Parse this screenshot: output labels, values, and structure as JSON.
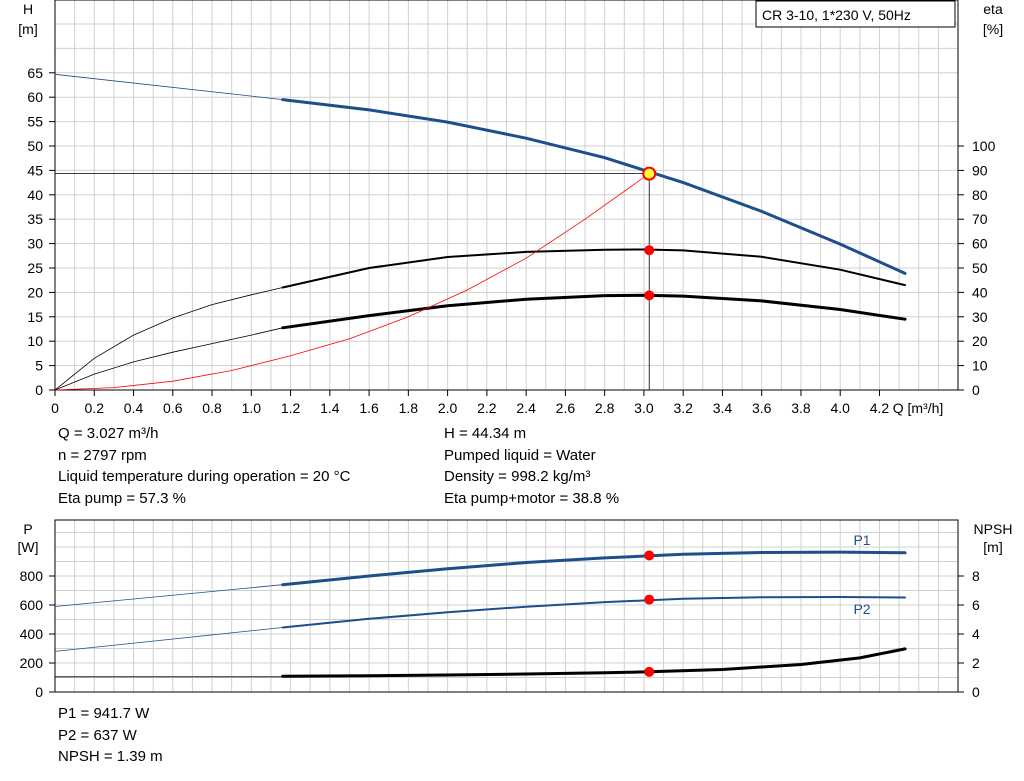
{
  "chart_data": [
    {
      "type": "line",
      "title": "CR 3-10, 1*230 V, 50Hz",
      "xlabel": "Q [m³/h]",
      "ylabel": [
        "H",
        "[m]"
      ],
      "y2label": [
        "eta",
        "[%]"
      ],
      "xlim": [
        0,
        4.6
      ],
      "ylim": [
        0,
        70
      ],
      "y2lim": [
        0,
        140
      ],
      "grid": true,
      "x_ticks": [
        "0",
        "0.2",
        "0.4",
        "0.6",
        "0.8",
        "1.0",
        "1.2",
        "1.4",
        "1.6",
        "1.8",
        "2.0",
        "2.2",
        "2.4",
        "2.6",
        "2.8",
        "3.0",
        "3.2",
        "3.4",
        "3.6",
        "3.8",
        "4.0",
        "4.2"
      ],
      "y_ticks": [
        "0",
        "5",
        "10",
        "15",
        "20",
        "25",
        "30",
        "35",
        "40",
        "45",
        "50",
        "55",
        "60",
        "65"
      ],
      "y2_ticks": [
        "0",
        "10",
        "20",
        "30",
        "40",
        "50",
        "60",
        "70",
        "80",
        "90",
        "100"
      ],
      "series": [
        {
          "id": "head",
          "axis": "left",
          "color": "#1f4e8c",
          "dashed": {
            "x": [
              0,
              1.16
            ],
            "y": [
              64.7,
              59.5
            ]
          },
          "operating": {
            "x": [
              1.16,
              1.6,
              2.0,
              2.4,
              2.8,
              3.2,
              3.6,
              4.0,
              4.33
            ],
            "y": [
              59.5,
              57.4,
              54.9,
              51.6,
              47.6,
              42.5,
              36.6,
              29.9,
              23.9
            ]
          }
        },
        {
          "id": "eta-pump",
          "axis": "right",
          "color": "#000000",
          "dashed": {
            "x": [
              0,
              0.2,
              0.4,
              0.6,
              0.8,
              1.0,
              1.16
            ],
            "y": [
              0,
              13,
              22.5,
              29.5,
              35,
              39,
              42
            ]
          },
          "operating": {
            "x": [
              1.16,
              1.6,
              2.0,
              2.4,
              2.8,
              3.0,
              3.2,
              3.6,
              4.0,
              4.33
            ],
            "y": [
              42,
              50,
              54.5,
              56.6,
              57.5,
              57.6,
              57.2,
              54.6,
              49.3,
              43
            ]
          }
        },
        {
          "id": "eta-total",
          "axis": "right",
          "color": "#000000",
          "dashed": {
            "x": [
              0,
              0.2,
              0.4,
              0.6,
              0.8,
              1.0,
              1.16
            ],
            "y": [
              0,
              6.5,
              11.5,
              15.5,
              19,
              22.5,
              25.5
            ]
          },
          "operating": {
            "x": [
              1.16,
              1.6,
              2.0,
              2.4,
              2.8,
              3.0,
              3.2,
              3.6,
              4.0,
              4.33
            ],
            "y": [
              25.5,
              30.5,
              34.5,
              37.2,
              38.7,
              38.8,
              38.5,
              36.5,
              33,
              29
            ]
          }
        },
        {
          "id": "system-curve",
          "axis": "left",
          "color": "#ff0000",
          "thin": true,
          "x": [
            0,
            0.3,
            0.6,
            0.9,
            1.2,
            1.5,
            1.8,
            2.1,
            2.4,
            2.7,
            3.027
          ],
          "y": [
            0,
            0.5,
            1.8,
            4,
            7,
            10.5,
            15,
            20.5,
            27,
            35,
            44.34
          ]
        }
      ],
      "operating_point": {
        "Q": 3.027,
        "H": 44.34,
        "eta_pump": 57.3,
        "eta_total": 38.8
      }
    },
    {
      "type": "line",
      "ylabel": [
        "P",
        "[W]"
      ],
      "y2label": [
        "NPSH",
        "[m]"
      ],
      "xlim": [
        0,
        4.6
      ],
      "ylim": [
        0,
        1050
      ],
      "y2lim": [
        0,
        10.5
      ],
      "grid": true,
      "y_ticks": [
        "0",
        "200",
        "400",
        "600",
        "800"
      ],
      "y2_ticks": [
        "0",
        "2",
        "4",
        "6",
        "8"
      ],
      "series": [
        {
          "id": "P1",
          "name": "P1",
          "axis": "left",
          "color": "#1f4e8c",
          "dashed": {
            "x": [
              0,
              1.16
            ],
            "y": [
              590,
              740
            ]
          },
          "operating": {
            "x": [
              1.16,
              1.6,
              2.0,
              2.4,
              2.8,
              3.2,
              3.6,
              4.0,
              4.33
            ],
            "y": [
              740,
              800,
              850,
              893,
              925,
              950,
              962,
              965,
              960
            ]
          }
        },
        {
          "id": "P2",
          "name": "P2",
          "axis": "left",
          "color": "#1f4e8c",
          "dashed": {
            "x": [
              0,
              1.16
            ],
            "y": [
              280,
              445
            ]
          },
          "operating": {
            "x": [
              1.16,
              1.6,
              2.0,
              2.4,
              2.8,
              3.2,
              3.6,
              4.0,
              4.33
            ],
            "y": [
              445,
              505,
              550,
              588,
              620,
              643,
              653,
              655,
              652
            ]
          }
        },
        {
          "id": "NPSH",
          "axis": "right",
          "color": "#000000",
          "dashed": {
            "x": [
              0,
              1.16
            ],
            "y": [
              1.05,
              1.05
            ]
          },
          "operating": {
            "x": [
              1.16,
              1.6,
              2.0,
              2.4,
              2.8,
              3.027,
              3.4,
              3.8,
              4.1,
              4.33
            ],
            "y": [
              1.08,
              1.12,
              1.17,
              1.24,
              1.33,
              1.39,
              1.55,
              1.9,
              2.35,
              2.97
            ]
          }
        }
      ],
      "operating_point": {
        "Q": 3.027,
        "P1": 941.7,
        "P2": 637,
        "NPSH": 1.39
      }
    }
  ],
  "info1": {
    "left": [
      "Q = 3.027 m³/h",
      "n = 2797 rpm",
      "Liquid temperature during operation = 20 °C",
      "Eta pump = 57.3 %"
    ],
    "right": [
      "H = 44.34 m",
      "Pumped liquid = Water",
      "Density = 998.2 kg/m³",
      "Eta pump+motor = 38.8 %"
    ]
  },
  "info2": [
    "P1 = 941.7 W",
    "P2 = 637 W",
    "NPSH = 1.39 m"
  ]
}
